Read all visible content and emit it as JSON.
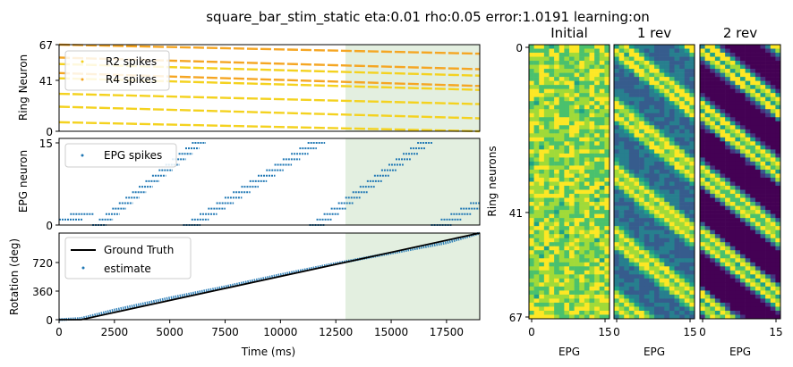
{
  "title": "square_bar_stim_static eta:0.01 rho:0.05 error:1.0191 learning:on",
  "colors": {
    "r2": "#f4d21f",
    "r4": "#f5a623",
    "epg": "#1f77b4",
    "truth": "#000000",
    "shade": "#e3efe0"
  },
  "chart_data": [
    {
      "type": "scatter",
      "name": "ring-spikes",
      "ylabel": "Ring Neuron",
      "xlim": [
        0,
        19000
      ],
      "ylim": [
        0,
        67
      ],
      "yticks": [
        "0",
        "41",
        "67"
      ],
      "shaded_x": [
        13000,
        19000
      ],
      "legend": {
        "placement": "top-left",
        "items": [
          "R2 spikes",
          "R4 spikes"
        ]
      },
      "series": [
        {
          "name": "R2 spikes",
          "bands": [
            [
              0,
              7,
              19000,
              0
            ],
            [
              0,
              19,
              19000,
              10
            ],
            [
              0,
              29,
              19000,
              21
            ],
            [
              0,
              41,
              19000,
              32
            ],
            [
              0,
              52,
              19000,
              43
            ]
          ]
        },
        {
          "name": "R4 spikes",
          "bands": [
            [
              0,
              45,
              19000,
              35
            ],
            [
              0,
              57,
              19000,
              48
            ],
            [
              0,
              67,
              19000,
              60
            ]
          ]
        }
      ]
    },
    {
      "type": "scatter",
      "name": "epg-spikes",
      "ylabel": "EPG neuron",
      "xlim": [
        0,
        19000
      ],
      "ylim": [
        0,
        15
      ],
      "yticks": [
        "0",
        "15"
      ],
      "shaded_x": [
        13000,
        19000
      ],
      "legend": {
        "placement": "top-left",
        "items": [
          "EPG spikes"
        ]
      },
      "series": [
        {
          "name": "EPG spikes",
          "sweeps": [
            [
              0,
              1000,
              1,
              2
            ],
            [
              1500,
              6300,
              0,
              15
            ],
            [
              5600,
              11600,
              0,
              15
            ],
            [
              11300,
              16500,
              0,
              15
            ],
            [
              16800,
              19000,
              0,
              4
            ]
          ]
        }
      ]
    },
    {
      "type": "line",
      "name": "rotation",
      "xlabel": "Time (ms)",
      "ylabel": "Rotation (deg)",
      "xlim": [
        0,
        19000
      ],
      "ylim": [
        0,
        1080
      ],
      "xticks": [
        "0",
        "2500",
        "5000",
        "7500",
        "10000",
        "12500",
        "15000",
        "17500"
      ],
      "yticks": [
        "0",
        "360",
        "720"
      ],
      "shaded_x": [
        13000,
        19000
      ],
      "legend": {
        "placement": "top-left",
        "items": [
          "Ground Truth",
          "estimate"
        ]
      },
      "series": [
        {
          "name": "Ground Truth",
          "x": [
            0,
            1000,
            19000
          ],
          "y": [
            0,
            0,
            1080
          ]
        },
        {
          "name": "estimate",
          "x": [
            0,
            1000,
            2500,
            5000,
            7500,
            10000,
            12500,
            15000,
            17500,
            19000
          ],
          "y": [
            0,
            15,
            120,
            270,
            410,
            560,
            700,
            830,
            960,
            1080
          ]
        }
      ]
    },
    {
      "type": "heatmap",
      "name": "weights-initial",
      "title": "Initial",
      "xlabel": "EPG",
      "ylabel": "Ring neurons",
      "xticks": [
        "0",
        "15"
      ],
      "yticks": [
        "0",
        "41",
        "67"
      ],
      "rows": 68,
      "cols": 16
    },
    {
      "type": "heatmap",
      "name": "weights-1rev",
      "title": "1 rev",
      "xlabel": "EPG",
      "xticks": [
        "0",
        "15"
      ],
      "rows": 68,
      "cols": 16
    },
    {
      "type": "heatmap",
      "name": "weights-2rev",
      "title": "2 rev",
      "xlabel": "EPG",
      "xticks": [
        "0",
        "15"
      ],
      "rows": 68,
      "cols": 16
    }
  ]
}
